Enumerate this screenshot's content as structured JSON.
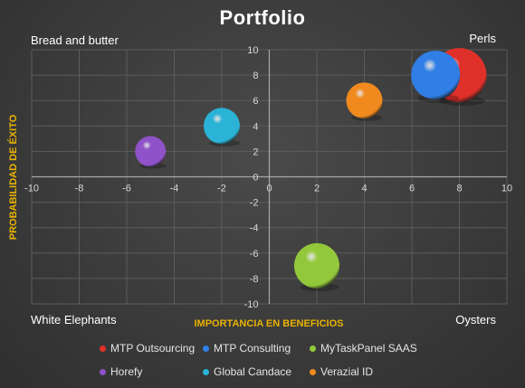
{
  "chart_data": {
    "type": "bubble",
    "title": "Portfolio",
    "xlabel": "IMPORTANCIA EN BENEFICIOS",
    "ylabel": "PROBABILIDAD DE ÉXITO",
    "xlim": [
      -10,
      10
    ],
    "ylim": [
      -10,
      10
    ],
    "x_ticks": [
      "-10",
      "-8",
      "-6",
      "-4",
      "-2",
      "0",
      "2",
      "4",
      "6",
      "8",
      "10"
    ],
    "y_ticks": [
      "10",
      "8",
      "6",
      "4",
      "2",
      "0",
      "-2",
      "-4",
      "-6",
      "-8",
      "-10"
    ],
    "grid": true,
    "legend_position": "bottom",
    "quadrant_labels": {
      "top_left": "Bread and butter",
      "top_right": "Perls",
      "bottom_left": "White Elephants",
      "bottom_right": "Oysters"
    },
    "series": [
      {
        "name": "MTP Outsourcing",
        "x": 8,
        "y": 8,
        "size": 1.5,
        "color": "#e0302a"
      },
      {
        "name": "MTP Consulting",
        "x": 7,
        "y": 8,
        "size": 1.35,
        "color": "#2f7fe6"
      },
      {
        "name": "MyTaskPanel SAAS",
        "x": 2,
        "y": -7,
        "size": 1.25,
        "color": "#93c83a"
      },
      {
        "name": "Horefy",
        "x": -5,
        "y": 2,
        "size": 0.85,
        "color": "#8f52c8"
      },
      {
        "name": "Global Candace",
        "x": -2,
        "y": 4,
        "size": 1.0,
        "color": "#2ab3d6"
      },
      {
        "name": "Verazial ID",
        "x": 4,
        "y": 6,
        "size": 1.0,
        "color": "#f08a1e"
      }
    ]
  }
}
